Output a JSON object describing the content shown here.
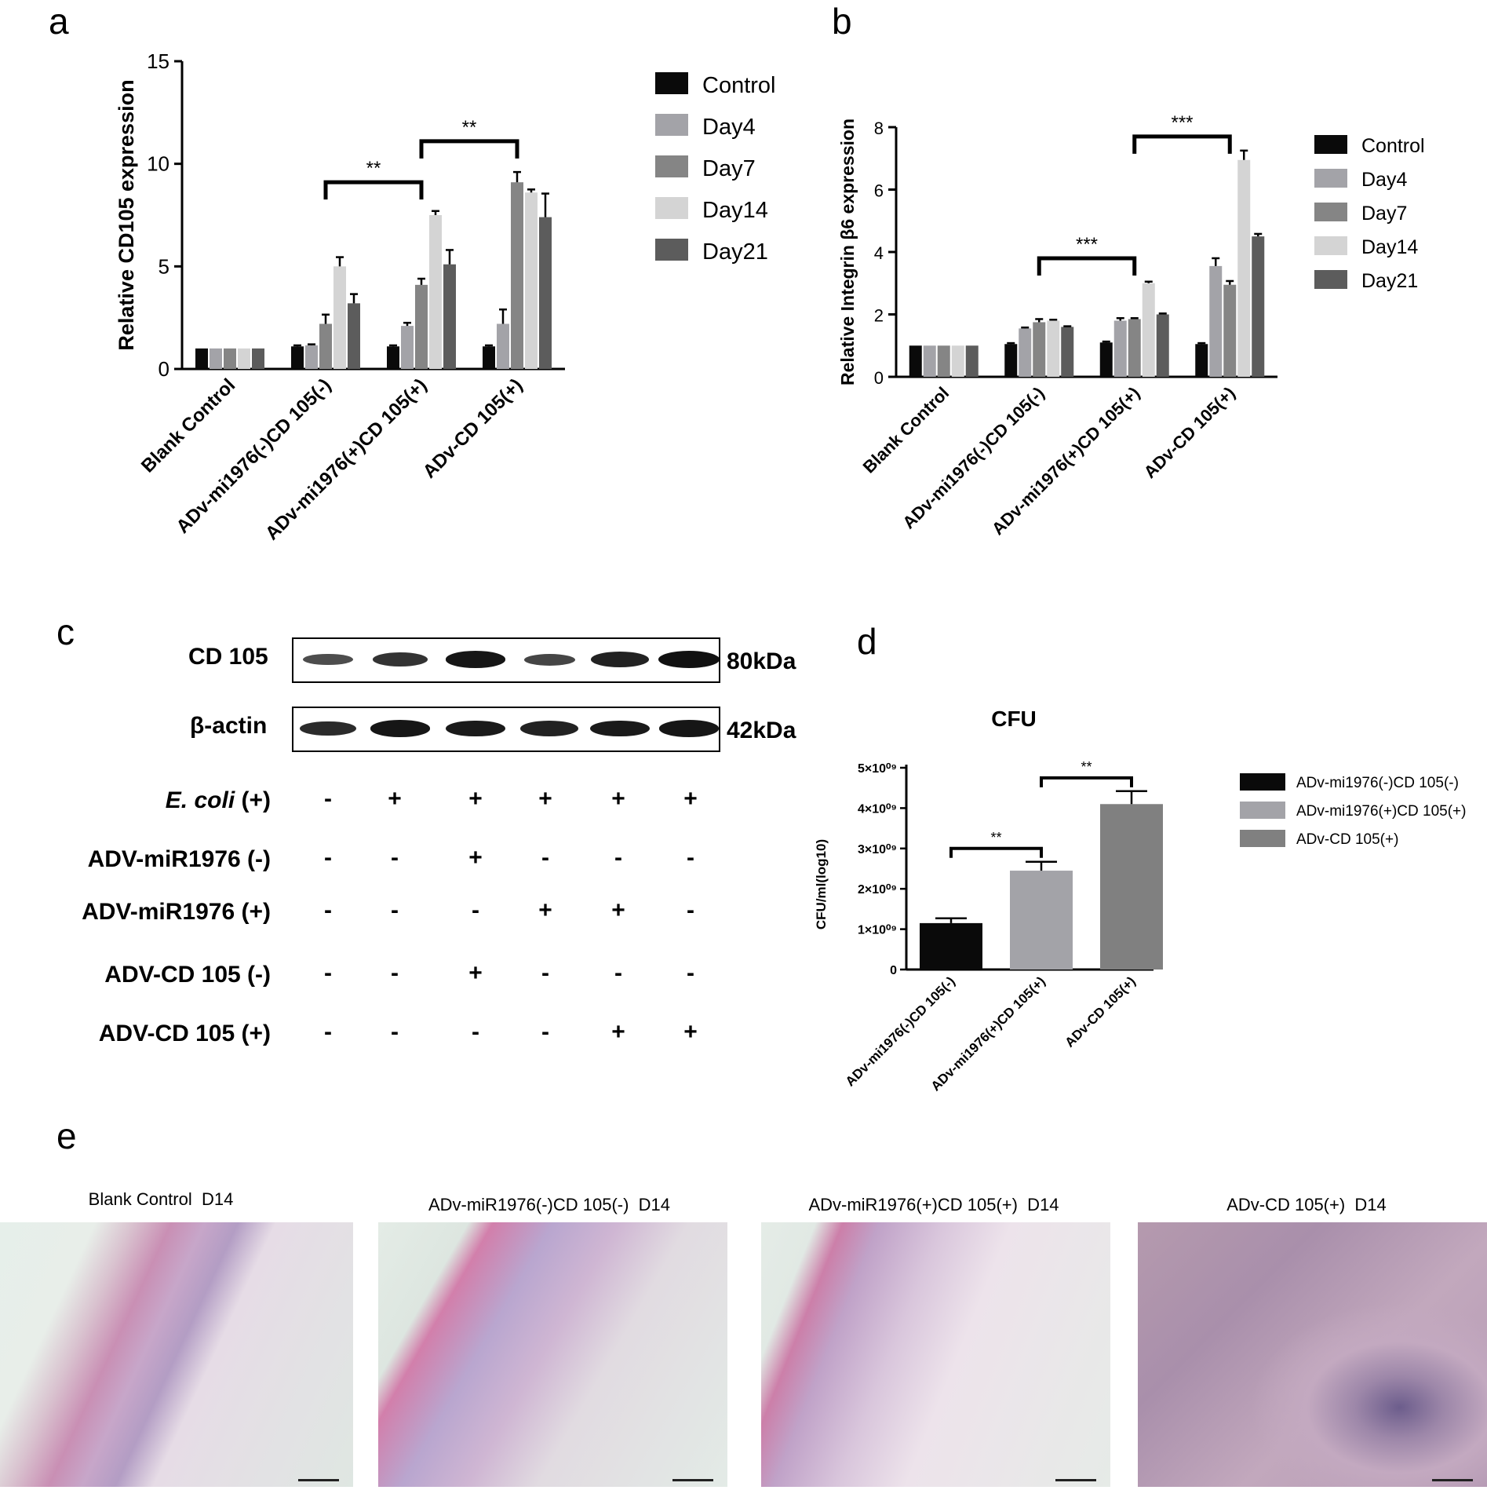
{
  "panel_letters": [
    "a",
    "b",
    "c",
    "d",
    "e"
  ],
  "chart_data": [
    {
      "panel": "a",
      "type": "bar",
      "ylabel": "Relative CD105 expression",
      "ylim": [
        0,
        15
      ],
      "yticks": [
        0,
        5,
        10,
        15
      ],
      "categories": [
        "Blank Control",
        "ADv-mi1976(-)CD 105(-)",
        "ADv-mi1976(+)CD 105(+)",
        "ADv-CD 105(+)"
      ],
      "series": [
        {
          "name": "Control",
          "color": "#0a0a0a",
          "values": [
            1.0,
            1.1,
            1.1,
            1.1
          ],
          "errors": [
            0,
            0.05,
            0.05,
            0.05
          ]
        },
        {
          "name": "Day4",
          "color": "#a3a3a8",
          "values": [
            1.0,
            1.15,
            2.1,
            2.2
          ],
          "errors": [
            0,
            0.05,
            0.15,
            0.7
          ]
        },
        {
          "name": "Day7",
          "color": "#858585",
          "values": [
            1.0,
            2.2,
            4.1,
            9.1
          ],
          "errors": [
            0,
            0.45,
            0.3,
            0.5
          ]
        },
        {
          "name": "Day14",
          "color": "#d4d4d4",
          "values": [
            1.0,
            5.0,
            7.5,
            8.6
          ],
          "errors": [
            0,
            0.45,
            0.2,
            0.15
          ]
        },
        {
          "name": "Day21",
          "color": "#5c5c5c",
          "values": [
            1.0,
            3.2,
            5.1,
            7.4
          ],
          "errors": [
            0,
            0.45,
            0.7,
            1.15
          ]
        }
      ],
      "legend": "right",
      "significance": [
        {
          "label": "**",
          "from_group": 1,
          "to_group": 2,
          "y": 9.1
        },
        {
          "label": "**",
          "from_group": 2,
          "to_group": 3,
          "y": 11.1
        }
      ]
    },
    {
      "panel": "b",
      "type": "bar",
      "ylabel": "Relative Integrin β6 expression",
      "ylim": [
        0,
        8
      ],
      "yticks": [
        0,
        2,
        4,
        6,
        8
      ],
      "categories": [
        "Blank Control",
        "ADv-mi1976(-)CD 105(-)",
        "ADv-mi1976(+)CD 105(+)",
        "ADv-CD 105(+)"
      ],
      "series": [
        {
          "name": "Control",
          "color": "#0a0a0a",
          "values": [
            1.0,
            1.05,
            1.1,
            1.05
          ],
          "errors": [
            0,
            0.03,
            0.03,
            0.03
          ]
        },
        {
          "name": "Day4",
          "color": "#a3a3a8",
          "values": [
            1.0,
            1.55,
            1.8,
            3.55
          ],
          "errors": [
            0,
            0.03,
            0.08,
            0.25
          ]
        },
        {
          "name": "Day7",
          "color": "#858585",
          "values": [
            1.0,
            1.75,
            1.85,
            2.95
          ],
          "errors": [
            0,
            0.1,
            0.03,
            0.12
          ]
        },
        {
          "name": "Day14",
          "color": "#d4d4d4",
          "values": [
            1.0,
            1.8,
            3.0,
            6.95
          ],
          "errors": [
            0,
            0.03,
            0.05,
            0.3
          ]
        },
        {
          "name": "Day21",
          "color": "#5c5c5c",
          "values": [
            1.0,
            1.6,
            2.0,
            4.5
          ],
          "errors": [
            0,
            0.02,
            0.03,
            0.08
          ]
        }
      ],
      "legend": "right",
      "significance": [
        {
          "label": "***",
          "from_group": 1,
          "to_group": 2,
          "y": 3.8
        },
        {
          "label": "***",
          "from_group": 2,
          "to_group": 3,
          "y": 7.7
        }
      ]
    },
    {
      "panel": "d",
      "type": "bar",
      "title": "CFU",
      "ylabel": "CFU/ml(log10)",
      "ylim": [
        0,
        5
      ],
      "yticks": [
        0,
        1,
        2,
        3,
        4,
        5
      ],
      "ytick_labels": [
        "0",
        "1×10⁰⁹",
        "2×10⁰⁹",
        "3×10⁰⁹",
        "4×10⁰⁹",
        "5×10⁰⁹"
      ],
      "categories": [
        "ADv-mi1976(-)CD 105(-)",
        "ADv-mi1976(+)CD 105(+)",
        "ADv-CD 105(+)"
      ],
      "values": [
        1.15,
        2.45,
        4.1
      ],
      "errors": [
        0.12,
        0.22,
        0.32
      ],
      "colors": [
        "#0a0a0a",
        "#a3a3a8",
        "#808080"
      ],
      "legend_entries": [
        "ADv-mi1976(-)CD 105(-)",
        "ADv-mi1976(+)CD 105(+)",
        "ADv-CD 105(+)"
      ],
      "legend": "right",
      "significance": [
        {
          "label": "**",
          "from_index": 0,
          "to_index": 1,
          "y": 3.0
        },
        {
          "label": "**",
          "from_index": 1,
          "to_index": 2,
          "y": 4.75
        }
      ]
    }
  ],
  "western_blot": {
    "proteins": [
      {
        "name": "CD 105",
        "size": "80kDa",
        "intensities": [
          0.45,
          0.7,
          0.95,
          0.5,
          0.85,
          1.0
        ]
      },
      {
        "name": "β-actin",
        "size": "42kDa",
        "intensities": [
          0.75,
          0.95,
          0.9,
          0.85,
          0.9,
          0.95
        ]
      }
    ],
    "conditions": [
      {
        "label": "E. coli",
        "suffix": " (+)",
        "italic": true,
        "values": [
          "-",
          "+",
          "+",
          "+",
          "+",
          "+"
        ]
      },
      {
        "label": "ADV-miR1976 (-)",
        "values": [
          "-",
          "-",
          "+",
          "-",
          "-",
          "-"
        ]
      },
      {
        "label": "ADV-miR1976 (+)",
        "values": [
          "-",
          "-",
          "-",
          "+",
          "+",
          "-"
        ]
      },
      {
        "label": "ADV-CD 105 (-)",
        "values": [
          "-",
          "-",
          "+",
          "-",
          "-",
          "-"
        ]
      },
      {
        "label": "ADV-CD 105 (+)",
        "values": [
          "-",
          "-",
          "-",
          "-",
          "+",
          "+"
        ]
      }
    ]
  },
  "histology": [
    {
      "title": "Blank Control  D14"
    },
    {
      "title": "ADv-miR1976(-)CD 105(-)  D14"
    },
    {
      "title": "ADv-miR1976(+)CD 105(+)  D14"
    },
    {
      "title": "ADv-CD 105(+)  D14"
    }
  ]
}
